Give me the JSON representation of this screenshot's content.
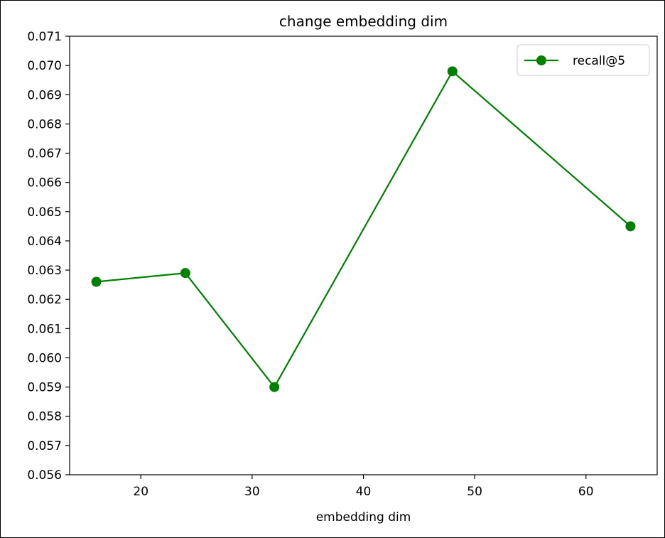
{
  "chart_data": {
    "type": "line",
    "title": "change embedding dim",
    "xlabel": "embedding dim",
    "ylabel": "",
    "x": [
      16,
      24,
      32,
      48,
      64
    ],
    "series": [
      {
        "name": "recall@5",
        "color": "#008000",
        "marker": "circle",
        "values": [
          0.0626,
          0.0629,
          0.059,
          0.0698,
          0.0645
        ]
      }
    ],
    "xlim": [
      13.6,
      66.4
    ],
    "ylim": [
      0.056,
      0.071
    ],
    "xticks": [
      20,
      30,
      40,
      50,
      60
    ],
    "xtick_labels": [
      "20",
      "30",
      "40",
      "50",
      "60"
    ],
    "yticks": [
      0.056,
      0.057,
      0.058,
      0.059,
      0.06,
      0.061,
      0.062,
      0.063,
      0.064,
      0.065,
      0.066,
      0.067,
      0.068,
      0.069,
      0.07,
      0.071
    ],
    "ytick_labels": [
      "0.056",
      "0.057",
      "0.058",
      "0.059",
      "0.060",
      "0.061",
      "0.062",
      "0.063",
      "0.064",
      "0.065",
      "0.066",
      "0.067",
      "0.068",
      "0.069",
      "0.070",
      "0.071"
    ],
    "grid": false,
    "legend_position": "top-right"
  }
}
